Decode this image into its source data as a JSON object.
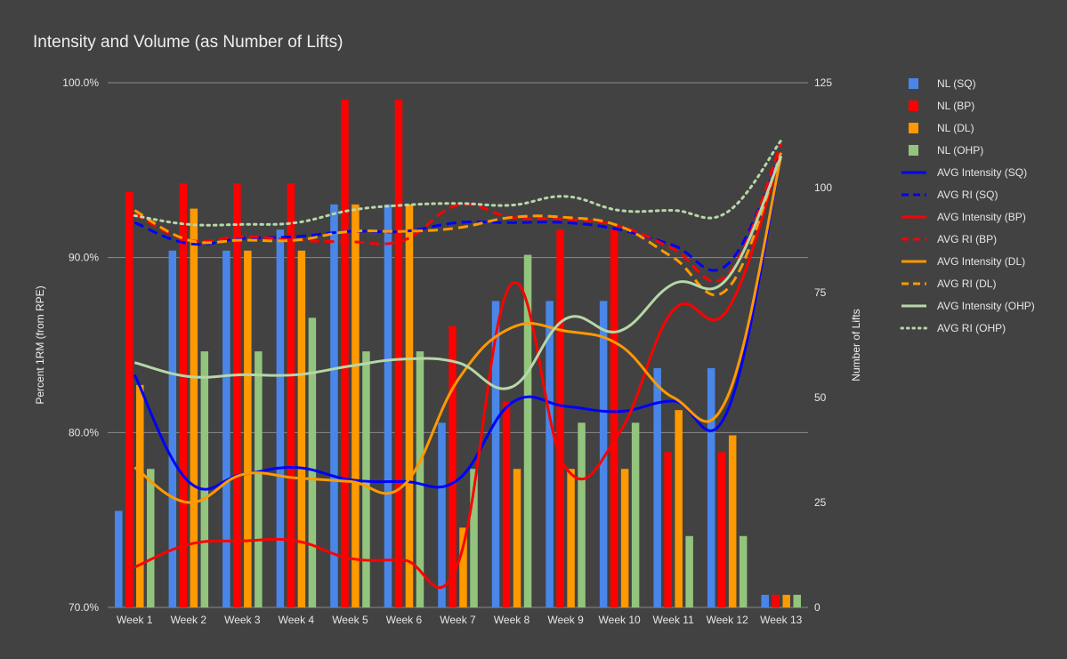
{
  "chart_data": {
    "title": "Intensity and Volume (as Number of Lifts)",
    "type": "bar+line",
    "categories": [
      "Week 1",
      "Week 2",
      "Week 3",
      "Week 4",
      "Week 5",
      "Week 6",
      "Week 7",
      "Week 8",
      "Week 9",
      "Week 10",
      "Week 11",
      "Week 12",
      "Week 13"
    ],
    "y_left": {
      "label": "Percent 1RM (from RPE)",
      "min": 70,
      "max": 100,
      "ticks": [
        70,
        80,
        90,
        100
      ],
      "tick_labels": [
        "70.0%",
        "80.0%",
        "90.0%",
        "100.0%"
      ]
    },
    "y_right": {
      "label": "Number of Lifts",
      "min": 0,
      "max": 125,
      "ticks": [
        0,
        25,
        50,
        75,
        100,
        125
      ],
      "tick_labels": [
        "0",
        "25",
        "50",
        "75",
        "100",
        "125"
      ]
    },
    "gridlines": true,
    "legend_position": "right",
    "bar_series": [
      {
        "name": "NL (SQ)",
        "color": "#4a86e8",
        "axis": "right",
        "values": [
          23,
          85,
          85,
          90,
          96,
          96,
          44,
          73,
          73,
          73,
          57,
          57,
          3
        ]
      },
      {
        "name": "NL (BP)",
        "color": "#ff0000",
        "axis": "right",
        "values": [
          99,
          101,
          101,
          101,
          121,
          121,
          67,
          49,
          90,
          90,
          37,
          37,
          3
        ]
      },
      {
        "name": "NL (DL)",
        "color": "#ff9900",
        "axis": "right",
        "values": [
          53,
          95,
          85,
          85,
          96,
          96,
          19,
          33,
          33,
          33,
          47,
          41,
          3
        ]
      },
      {
        "name": "NL (OHP)",
        "color": "#93c47d",
        "axis": "right",
        "values": [
          33,
          61,
          61,
          69,
          61,
          61,
          33,
          84,
          44,
          44,
          17,
          17,
          3
        ]
      }
    ],
    "line_series": [
      {
        "name": "AVG Intensity (SQ)",
        "color": "#0000ff",
        "style": "solid",
        "axis": "left",
        "values": [
          83.3,
          77.2,
          77.6,
          78.0,
          77.3,
          77.2,
          77.3,
          81.7,
          81.5,
          81.2,
          81.8,
          81.2,
          95.8
        ]
      },
      {
        "name": "AVG RI (SQ)",
        "color": "#0000ff",
        "style": "dashed",
        "axis": "left",
        "values": [
          92.0,
          90.8,
          91.1,
          91.2,
          91.5,
          91.5,
          92.0,
          92.0,
          92.0,
          91.6,
          90.7,
          89.6,
          96.0
        ]
      },
      {
        "name": "AVG Intensity (BP)",
        "color": "#ff0000",
        "style": "solid",
        "axis": "left",
        "values": [
          72.3,
          73.6,
          73.8,
          73.8,
          72.8,
          72.7,
          72.5,
          88.5,
          78.0,
          80.0,
          87.0,
          87.0,
          96.0
        ]
      },
      {
        "name": "AVG RI (BP)",
        "color": "#ff0000",
        "style": "dashed",
        "axis": "left",
        "values": [
          92.5,
          91.0,
          91.2,
          91.0,
          90.9,
          91.0,
          93.0,
          92.3,
          92.2,
          91.8,
          90.5,
          89.0,
          96.5
        ]
      },
      {
        "name": "AVG Intensity (DL)",
        "color": "#ff9900",
        "style": "solid",
        "axis": "left",
        "values": [
          78.0,
          76.0,
          77.6,
          77.4,
          77.2,
          77.0,
          83.0,
          86.0,
          85.8,
          85.0,
          82.0,
          82.0,
          95.8
        ]
      },
      {
        "name": "AVG RI (DL)",
        "color": "#ff9900",
        "style": "dashed",
        "axis": "left",
        "values": [
          92.7,
          91.0,
          91.0,
          91.0,
          91.5,
          91.5,
          91.7,
          92.3,
          92.3,
          91.8,
          90.0,
          88.2,
          96.0
        ]
      },
      {
        "name": "AVG Intensity (OHP)",
        "color": "#b6d7a8",
        "style": "solid",
        "axis": "left",
        "values": [
          84.0,
          83.2,
          83.3,
          83.3,
          83.8,
          84.2,
          84.0,
          82.6,
          86.5,
          85.8,
          88.5,
          88.8,
          95.8
        ]
      },
      {
        "name": "AVG RI (OHP)",
        "color": "#b6d7a8",
        "style": "dotted",
        "axis": "left",
        "values": [
          92.4,
          91.9,
          91.9,
          92.0,
          92.7,
          93.0,
          93.1,
          93.0,
          93.5,
          92.7,
          92.7,
          92.6,
          96.7
        ]
      }
    ]
  }
}
